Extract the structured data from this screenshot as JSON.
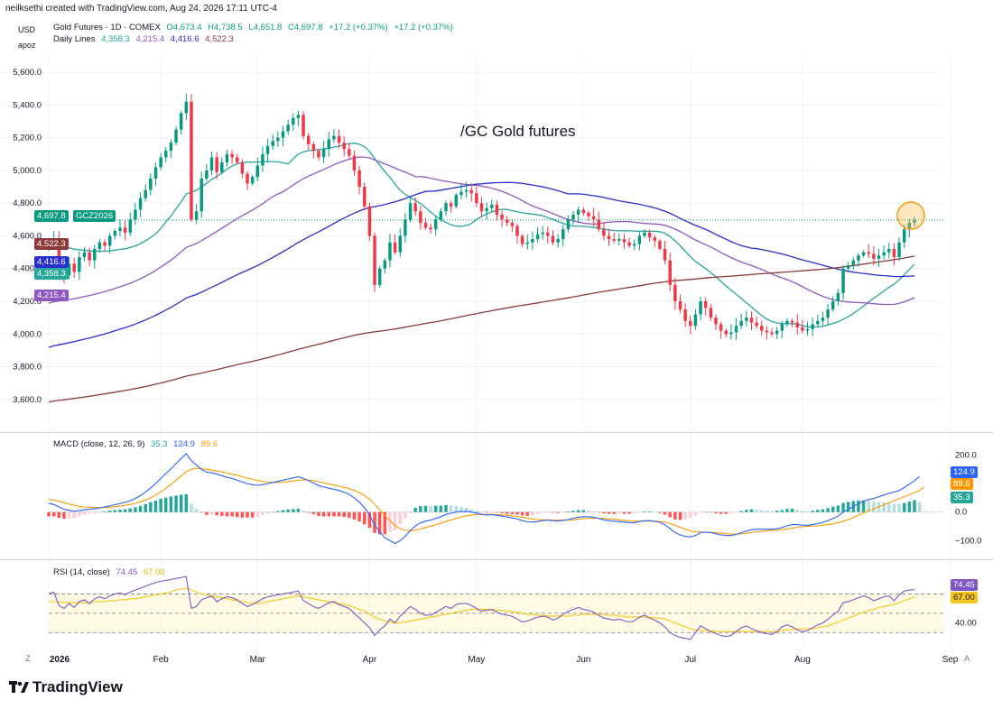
{
  "header": {
    "credit": "neilksethi created with TradingView.com, Aug 24, 2026 17:11 UTC-4"
  },
  "currency": "USD",
  "scale_mode": "apoz",
  "price_legend": {
    "name": "Gold Futures · 1D · COMEX",
    "o": "O4,673.4",
    "h": "H4,738.5",
    "l": "L4,651.8",
    "c": "C4,697.8",
    "chg": "+17.2 (+0.37%)",
    "chg2": "+17.2 (+0.37%)"
  },
  "ma_legend": {
    "name": "Daily Lines",
    "v1": "4,358.3",
    "v2": "4,215.4",
    "v3": "4,416.6",
    "v4": "4,522.3"
  },
  "annotation": "/GC Gold futures",
  "price_tags": {
    "last": "4,697.8",
    "symbol": "GCZ2026",
    "ma200": "4,522.3",
    "ma50": "4,416.6",
    "ma20": "4,358.3",
    "ma100": "4,215.4"
  },
  "macd_legend": {
    "name": "MACD (close, 12, 26, 9)",
    "hist": "35.3",
    "macd": "124.9",
    "signal": "89.6"
  },
  "macd_tags": {
    "macd": "124.9",
    "signal": "89.6",
    "hist": "35.3"
  },
  "rsi_legend": {
    "name": "RSI (14, close)",
    "rsi": "74.45",
    "ma": "67.00"
  },
  "rsi_tags": {
    "rsi": "74.45",
    "ma": "67.00"
  },
  "x_axis": [
    "2026",
    "Feb",
    "Mar",
    "Apr",
    "May",
    "Jun",
    "Jul",
    "Aug",
    "Sep"
  ],
  "corner_labels": {
    "left": "Z",
    "right": "A"
  },
  "brand": "TradingView",
  "colors": {
    "up": "#089981",
    "down": "#f23645",
    "ma20": "#26a69a",
    "ma50": "#2a2ed0",
    "ma100": "#8e58c2",
    "ma200": "#8b3a3a",
    "macd": "#2962ff",
    "signal": "#ff9800",
    "rsi": "#7e57c2",
    "rsi_ma": "#f5c518"
  },
  "chart_data": [
    {
      "type": "candlestick",
      "title": "/GC Gold futures",
      "ylim": [
        3450,
        5700
      ],
      "yticks": [
        "3,600.0",
        "3,800.0",
        "4,000.0",
        "4,200.0",
        "4,400.0",
        "4,600.0",
        "4,800.0",
        "5,000.0",
        "5,200.0",
        "5,400.0",
        "5,600.0"
      ],
      "close": [
        4540,
        4580,
        4390,
        4360,
        4430,
        4380,
        4470,
        4500,
        4450,
        4520,
        4560,
        4540,
        4600,
        4630,
        4650,
        4620,
        4700,
        4760,
        4830,
        4880,
        4950,
        5020,
        5080,
        5120,
        5170,
        5250,
        5350,
        5420,
        4700,
        4750,
        4950,
        5000,
        5080,
        4990,
        5050,
        5100,
        5080,
        5050,
        4980,
        4920,
        4960,
        5030,
        5100,
        5150,
        5180,
        5200,
        5240,
        5280,
        5320,
        5340,
        5210,
        5160,
        5120,
        5080,
        5130,
        5190,
        5210,
        5170,
        5130,
        5090,
        5000,
        4900,
        4780,
        4600,
        4300,
        4400,
        4450,
        4560,
        4500,
        4600,
        4700,
        4800,
        4750,
        4680,
        4650,
        4640,
        4700,
        4750,
        4800,
        4780,
        4850,
        4870,
        4880,
        4860,
        4800,
        4750,
        4770,
        4790,
        4730,
        4700,
        4680,
        4660,
        4600,
        4550,
        4560,
        4580,
        4610,
        4620,
        4600,
        4560,
        4580,
        4640,
        4700,
        4730,
        4760,
        4740,
        4720,
        4700,
        4640,
        4600,
        4580,
        4570,
        4580,
        4560,
        4540,
        4550,
        4600,
        4620,
        4590,
        4570,
        4520,
        4450,
        4300,
        4200,
        4150,
        4080,
        4050,
        4120,
        4200,
        4160,
        4100,
        4060,
        4020,
        4000,
        4010,
        4050,
        4080,
        4100,
        4070,
        4050,
        4020,
        4010,
        4000,
        4020,
        4060,
        4080,
        4070,
        4040,
        4020,
        4030,
        4060,
        4080,
        4100,
        4150,
        4200,
        4250,
        4400,
        4420,
        4450,
        4480,
        4500,
        4490,
        4460,
        4480,
        4500,
        4520,
        4470,
        4560,
        4640,
        4680,
        4697.8
      ]
    },
    {
      "type": "line",
      "title": "MACD (close, 12, 26, 9)",
      "ylim": [
        -140,
        230
      ],
      "yticks": [
        "200.0",
        "0.0",
        "−100.0"
      ],
      "series": [
        {
          "name": "MACD",
          "values": [
            30,
            27,
            18,
            10,
            6,
            3,
            5,
            8,
            10,
            12,
            15,
            18,
            22,
            26,
            30,
            34,
            40,
            48,
            58,
            70,
            85,
            100,
            118,
            135,
            152,
            170,
            188,
            205,
            180,
            165,
            150,
            140,
            138,
            133,
            128,
            122,
            118,
            112,
            105,
            100,
            96,
            94,
            96,
            100,
            104,
            108,
            112,
            116,
            120,
            124,
            118,
            110,
            102,
            93,
            88,
            84,
            80,
            76,
            70,
            62,
            50,
            35,
            15,
            -10,
            -45,
            -70,
            -90,
            -100,
            -110,
            -100,
            -85,
            -65,
            -48,
            -38,
            -32,
            -28,
            -22,
            -16,
            -8,
            -4,
            0,
            2,
            3,
            0,
            -3,
            -8,
            -10,
            -9,
            -11,
            -14,
            -17,
            -20,
            -24,
            -30,
            -34,
            -35,
            -33,
            -30,
            -28,
            -30,
            -31,
            -29,
            -26,
            -22,
            -18,
            -16,
            -16,
            -18,
            -22,
            -27,
            -30,
            -32,
            -33,
            -35,
            -37,
            -37,
            -33,
            -30,
            -30,
            -32,
            -36,
            -44,
            -58,
            -72,
            -80,
            -85,
            -87,
            -82,
            -72,
            -70,
            -72,
            -76,
            -80,
            -82,
            -82,
            -78,
            -72,
            -66,
            -62,
            -60,
            -60,
            -60,
            -60,
            -58,
            -54,
            -48,
            -44,
            -44,
            -46,
            -46,
            -44,
            -40,
            -36,
            -30,
            -22,
            -14,
            0,
            10,
            20,
            30,
            38,
            44,
            48,
            54,
            60,
            66,
            70,
            76,
            86,
            98,
            110,
            124.9
          ]
        },
        {
          "name": "Signal",
          "values": [
            45,
            42,
            38,
            33,
            28,
            24,
            20,
            18,
            17,
            16,
            16,
            16,
            17,
            19,
            21,
            24,
            27,
            31,
            36,
            42,
            50,
            60,
            71,
            84,
            97,
            112,
            127,
            142,
            150,
            153,
            152,
            150,
            147,
            144,
            141,
            137,
            133,
            129,
            124,
            119,
            115,
            111,
            107,
            105,
            104,
            104,
            105,
            107,
            109,
            112,
            113,
            112,
            110,
            107,
            103,
            99,
            95,
            91,
            87,
            82,
            76,
            68,
            58,
            45,
            28,
            8,
            -12,
            -30,
            -47,
            -58,
            -64,
            -65,
            -63,
            -59,
            -54,
            -49,
            -44,
            -39,
            -33,
            -27,
            -22,
            -17,
            -13,
            -10,
            -8,
            -8,
            -8,
            -8,
            -9,
            -10,
            -11,
            -13,
            -15,
            -18,
            -21,
            -24,
            -26,
            -27,
            -27,
            -28,
            -28,
            -28,
            -28,
            -27,
            -25,
            -23,
            -22,
            -21,
            -21,
            -22,
            -24,
            -25,
            -27,
            -29,
            -31,
            -32,
            -32,
            -32,
            -32,
            -32,
            -33,
            -35,
            -40,
            -46,
            -53,
            -60,
            -66,
            -69,
            -70,
            -70,
            -71,
            -72,
            -74,
            -76,
            -77,
            -77,
            -76,
            -74,
            -72,
            -69,
            -67,
            -65,
            -64,
            -63,
            -61,
            -59,
            -56,
            -53,
            -51,
            -50,
            -49,
            -48,
            -46,
            -44,
            -41,
            -37,
            -32,
            -26,
            -19,
            -11,
            -3,
            5,
            12,
            19,
            26,
            33,
            40,
            47,
            54,
            61,
            68,
            76,
            89.6
          ]
        },
        {
          "name": "Histogram",
          "values": [
            -15,
            -15,
            -20,
            -23,
            -22,
            -21,
            -15,
            -10,
            -7,
            -4,
            -1,
            2,
            5,
            7,
            9,
            10,
            13,
            17,
            22,
            28,
            35,
            40,
            47,
            51,
            55,
            58,
            61,
            63,
            30,
            12,
            -2,
            -10,
            -9,
            -11,
            -13,
            -15,
            -15,
            -17,
            -19,
            -19,
            -19,
            -17,
            -11,
            -5,
            0,
            4,
            7,
            9,
            11,
            12,
            5,
            -2,
            -8,
            -14,
            -15,
            -15,
            -15,
            -15,
            -17,
            -20,
            -26,
            -33,
            -43,
            -55,
            -73,
            -78,
            -78,
            -70,
            -63,
            -42,
            -21,
            0,
            15,
            21,
            22,
            21,
            22,
            23,
            25,
            23,
            22,
            19,
            16,
            10,
            5,
            0,
            -2,
            -1,
            -2,
            -4,
            -6,
            -7,
            -9,
            -12,
            -13,
            -11,
            -7,
            -3,
            -1,
            -2,
            -3,
            -1,
            2,
            5,
            7,
            7,
            6,
            3,
            -1,
            -5,
            -6,
            -7,
            -6,
            -6,
            -6,
            -5,
            -1,
            2,
            2,
            0,
            -3,
            -9,
            -18,
            -26,
            -27,
            -25,
            -21,
            -13,
            -2,
            0,
            -1,
            -4,
            -6,
            -6,
            -5,
            -1,
            4,
            8,
            10,
            9,
            7,
            5,
            4,
            5,
            7,
            11,
            12,
            9,
            5,
            4,
            5,
            8,
            10,
            14,
            19,
            23,
            32,
            36,
            39,
            41,
            41,
            39,
            36,
            35,
            34,
            33,
            30,
            29,
            32,
            37,
            42,
            35.3
          ]
        }
      ]
    },
    {
      "type": "line",
      "title": "RSI (14, close)",
      "ylim": [
        20,
        90
      ],
      "yticks": [
        "80.00",
        "40.00"
      ],
      "bands": [
        30,
        50,
        70
      ],
      "series": [
        {
          "name": "RSI",
          "values": [
            70,
            72,
            58,
            55,
            60,
            56,
            62,
            64,
            60,
            65,
            67,
            65,
            68,
            70,
            71,
            69,
            72,
            74,
            76,
            78,
            80,
            82,
            83,
            84,
            85,
            86,
            87,
            88,
            55,
            57,
            64,
            66,
            68,
            62,
            65,
            67,
            66,
            64,
            60,
            57,
            59,
            62,
            65,
            67,
            68,
            69,
            70,
            71,
            72,
            73,
            63,
            60,
            57,
            55,
            58,
            61,
            62,
            59,
            57,
            55,
            50,
            45,
            40,
            35,
            27,
            33,
            37,
            44,
            40,
            47,
            52,
            57,
            54,
            50,
            48,
            48,
            51,
            54,
            57,
            55,
            59,
            60,
            60,
            58,
            55,
            52,
            53,
            54,
            51,
            49,
            48,
            47,
            44,
            41,
            42,
            44,
            46,
            47,
            46,
            43,
            45,
            49,
            52,
            54,
            56,
            54,
            53,
            51,
            48,
            45,
            44,
            43,
            44,
            42,
            41,
            42,
            46,
            48,
            45,
            43,
            40,
            36,
            30,
            27,
            25,
            24,
            23,
            30,
            37,
            34,
            31,
            29,
            27,
            26,
            27,
            31,
            35,
            37,
            34,
            32,
            30,
            29,
            28,
            31,
            36,
            38,
            36,
            33,
            31,
            32,
            35,
            38,
            40,
            44,
            48,
            52,
            61,
            62,
            64,
            66,
            68,
            66,
            63,
            65,
            67,
            68,
            63,
            69,
            73,
            74,
            74.45
          ]
        },
        {
          "name": "RSI-based MA",
          "values": [
            62,
            62,
            62,
            61,
            61,
            61,
            61,
            61,
            61,
            62,
            62,
            62,
            63,
            63,
            64,
            64,
            65,
            65,
            66,
            67,
            68,
            69,
            70,
            71,
            72,
            74,
            75,
            76,
            74,
            72,
            70,
            69,
            68,
            67,
            66,
            65,
            64,
            63,
            62,
            61,
            60,
            60,
            61,
            62,
            63,
            64,
            65,
            66,
            67,
            68,
            67,
            66,
            65,
            64,
            63,
            62,
            61,
            60,
            59,
            58,
            56,
            54,
            52,
            49,
            46,
            44,
            42,
            41,
            40,
            40,
            41,
            42,
            43,
            44,
            45,
            46,
            47,
            48,
            49,
            50,
            51,
            52,
            53,
            54,
            54,
            54,
            54,
            54,
            53,
            53,
            52,
            52,
            51,
            50,
            49,
            49,
            48,
            48,
            47,
            47,
            47,
            47,
            47,
            48,
            48,
            49,
            49,
            49,
            49,
            49,
            48,
            48,
            47,
            47,
            46,
            46,
            46,
            46,
            46,
            45,
            45,
            44,
            42,
            40,
            38,
            36,
            34,
            33,
            32,
            32,
            32,
            31,
            31,
            31,
            31,
            31,
            31,
            31,
            31,
            31,
            31,
            31,
            31,
            31,
            32,
            33,
            33,
            34,
            34,
            34,
            34,
            35,
            36,
            37,
            39,
            41,
            43,
            45,
            47,
            49,
            51,
            53,
            54,
            56,
            57,
            58,
            59,
            61,
            63,
            65,
            67.0
          ]
        }
      ]
    }
  ]
}
